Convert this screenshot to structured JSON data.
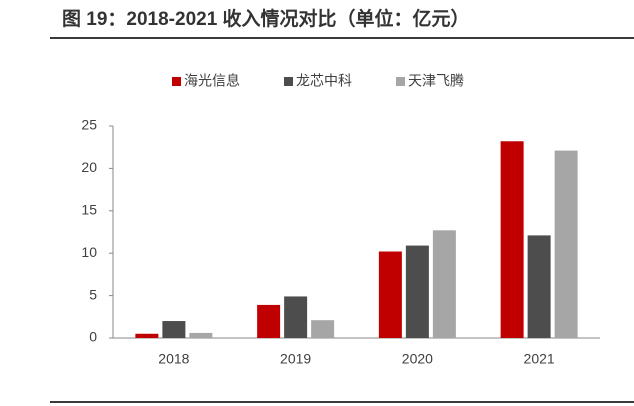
{
  "chart_data": {
    "type": "bar",
    "title": "图 19：2018-2021 收入情况对比（单位：亿元）",
    "categories": [
      "2018",
      "2019",
      "2020",
      "2021"
    ],
    "series": [
      {
        "name": "海光信息",
        "color": "#c00000",
        "values": [
          0.5,
          3.9,
          10.2,
          23.2
        ]
      },
      {
        "name": "龙芯中科",
        "color": "#4d4d4d",
        "values": [
          2.0,
          4.9,
          10.9,
          12.1
        ]
      },
      {
        "name": "天津飞腾",
        "color": "#a6a6a6",
        "values": [
          0.6,
          2.1,
          12.7,
          22.1
        ]
      }
    ],
    "ylim": [
      0,
      25
    ],
    "yticks": [
      0,
      5,
      10,
      15,
      20,
      25
    ],
    "grid": false,
    "legend": "top"
  }
}
